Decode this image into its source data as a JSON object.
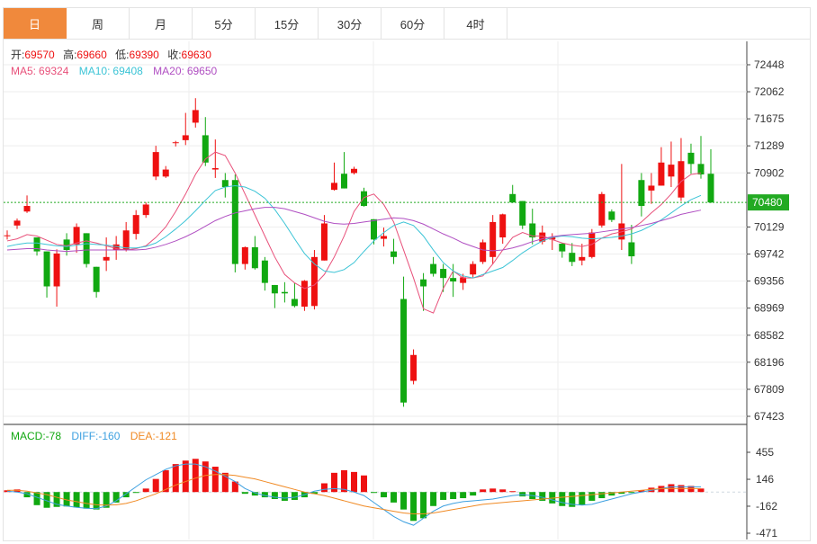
{
  "tabs": [
    {
      "label": "日",
      "active": true
    },
    {
      "label": "周",
      "active": false
    },
    {
      "label": "月",
      "active": false
    },
    {
      "label": "5分",
      "active": false
    },
    {
      "label": "15分",
      "active": false
    },
    {
      "label": "30分",
      "active": false
    },
    {
      "label": "60分",
      "active": false
    },
    {
      "label": "4时",
      "active": false
    }
  ],
  "info": {
    "open_label": "开:",
    "open": "69570",
    "high_label": "高:",
    "high": "69660",
    "low_label": "低:",
    "low": "69390",
    "close_label": "收:",
    "close": "69630"
  },
  "ma_legend": {
    "ma5_label": "MA5:",
    "ma5": "69324",
    "ma10_label": "MA10:",
    "ma10": "69408",
    "ma20_label": "MA20:",
    "ma20": "69650"
  },
  "macd_legend": {
    "macd_label": "MACD:",
    "macd": "-78",
    "diff_label": "DIFF:",
    "diff": "-160",
    "dea_label": "DEA:",
    "dea": "-121"
  },
  "colors": {
    "up": "#ee1111",
    "down": "#11a811",
    "ma5": "#e8507a",
    "ma10": "#3cc4d6",
    "ma20": "#b04fc2",
    "diff": "#3da0e0",
    "dea": "#f08a24",
    "current": "#22aa22",
    "tab_active": "#f0893c"
  },
  "chart_data": [
    {
      "type": "candlestick",
      "y_ticks": [
        "72448",
        "72062",
        "71675",
        "71289",
        "70902",
        "70129",
        "69742",
        "69356",
        "68969",
        "68582",
        "68196",
        "67809",
        "67423"
      ],
      "ylim": [
        67423,
        72448
      ],
      "current_price": "70480",
      "candles": [
        [
          70010,
          70080,
          69950,
          70010
        ],
        [
          70150,
          70250,
          70100,
          70220
        ],
        [
          70350,
          70580,
          70330,
          70430
        ],
        [
          69980,
          69980,
          69720,
          69780
        ],
        [
          69780,
          69780,
          69120,
          69280
        ],
        [
          69280,
          69810,
          68990,
          69750
        ],
        [
          69950,
          70040,
          69720,
          69800
        ],
        [
          69880,
          70180,
          69760,
          70130
        ],
        [
          70040,
          70040,
          69550,
          69600
        ],
        [
          69560,
          69560,
          69120,
          69200
        ],
        [
          69650,
          69980,
          69500,
          69700
        ],
        [
          69800,
          70000,
          69660,
          69880
        ],
        [
          69800,
          70200,
          69780,
          70080
        ],
        [
          70030,
          70370,
          69950,
          70300
        ],
        [
          70300,
          70480,
          70260,
          70450
        ],
        [
          70850,
          71290,
          70800,
          71200
        ],
        [
          70850,
          71000,
          70830,
          70950
        ],
        [
          71340,
          71360,
          71280,
          71340
        ],
        [
          71370,
          71760,
          71300,
          71440
        ],
        [
          71620,
          71970,
          71550,
          71800
        ],
        [
          71440,
          71700,
          71000,
          71050
        ],
        [
          70950,
          71380,
          70830,
          70970
        ],
        [
          70800,
          70900,
          70550,
          70700
        ],
        [
          70800,
          70880,
          69480,
          69600
        ],
        [
          69600,
          69850,
          69520,
          69840
        ],
        [
          69840,
          70000,
          69520,
          69540
        ],
        [
          69650,
          69700,
          69220,
          69330
        ],
        [
          69300,
          69300,
          68970,
          69180
        ],
        [
          69200,
          69340,
          69050,
          69180
        ],
        [
          69100,
          69330,
          68980,
          69000
        ],
        [
          68990,
          69370,
          68930,
          69360
        ],
        [
          69000,
          69800,
          68950,
          69700
        ],
        [
          69650,
          70300,
          69650,
          70180
        ],
        [
          70660,
          71050,
          70650,
          70760
        ],
        [
          70890,
          71200,
          70680,
          70680
        ],
        [
          70900,
          70990,
          70880,
          70960
        ],
        [
          70640,
          70690,
          70420,
          70430
        ],
        [
          70240,
          70240,
          69880,
          69950
        ],
        [
          69960,
          70120,
          69850,
          70000
        ],
        [
          69780,
          69960,
          69600,
          69700
        ],
        [
          69100,
          69420,
          67560,
          67620
        ],
        [
          67930,
          68380,
          67880,
          68300
        ],
        [
          69380,
          69470,
          68930,
          69280
        ],
        [
          69600,
          69700,
          69420,
          69460
        ],
        [
          69530,
          69600,
          69200,
          69400
        ],
        [
          69400,
          69600,
          69130,
          69350
        ],
        [
          69330,
          69460,
          69230,
          69410
        ],
        [
          69450,
          69640,
          69410,
          69600
        ],
        [
          69630,
          69950,
          69600,
          69910
        ],
        [
          69700,
          70300,
          69600,
          70200
        ],
        [
          69980,
          70320,
          69890,
          70310
        ],
        [
          70600,
          70730,
          70470,
          70480
        ],
        [
          70500,
          70500,
          70100,
          70150
        ],
        [
          70180,
          70390,
          69880,
          69980
        ],
        [
          69920,
          70150,
          69880,
          70050
        ],
        [
          69950,
          70040,
          69800,
          69980
        ],
        [
          69890,
          69900,
          69690,
          69780
        ],
        [
          69760,
          69900,
          69570,
          69630
        ],
        [
          69650,
          69890,
          69580,
          69700
        ],
        [
          69700,
          70100,
          69680,
          70050
        ],
        [
          70150,
          70630,
          70120,
          70600
        ],
        [
          70350,
          70380,
          70200,
          70230
        ],
        [
          69950,
          71030,
          69800,
          70180
        ],
        [
          69910,
          70160,
          69600,
          69710
        ],
        [
          70800,
          70900,
          70280,
          70430
        ],
        [
          70650,
          70900,
          70460,
          70720
        ],
        [
          70720,
          71270,
          70720,
          71050
        ],
        [
          70850,
          71350,
          70700,
          71020
        ],
        [
          70550,
          71400,
          70500,
          71070
        ],
        [
          71190,
          71320,
          70890,
          71030
        ],
        [
          71030,
          71430,
          70820,
          70880
        ],
        [
          70890,
          71240,
          70470,
          70480
        ]
      ],
      "ma5": [
        69930,
        69960,
        70020,
        70000,
        69940,
        69880,
        69860,
        69900,
        69930,
        69900,
        69860,
        69820,
        69800,
        69820,
        69860,
        69980,
        70130,
        70350,
        70600,
        70880,
        71100,
        71200,
        71150,
        70900,
        70600,
        70300,
        70000,
        69700,
        69450,
        69330,
        69250,
        69300,
        69450,
        69700,
        70000,
        70350,
        70550,
        70600,
        70450,
        70200,
        69800,
        69400,
        68960,
        68900,
        69250,
        69500,
        69400,
        69400,
        69430,
        69600,
        69800,
        69980,
        70050,
        70000,
        70000,
        69950,
        69900,
        69870,
        69850,
        69880,
        69970,
        70030,
        70060,
        70100,
        70200,
        70330,
        70450,
        70600,
        70780,
        70880,
        70900
      ],
      "ma10": [
        69850,
        69880,
        69900,
        69900,
        69880,
        69860,
        69850,
        69870,
        69890,
        69880,
        69870,
        69850,
        69830,
        69830,
        69850,
        69900,
        69990,
        70100,
        70220,
        70360,
        70510,
        70650,
        70700,
        70720,
        70700,
        70640,
        70540,
        70380,
        70180,
        69960,
        69750,
        69600,
        69500,
        69480,
        69520,
        69620,
        69780,
        69930,
        70050,
        70150,
        70200,
        70150,
        70000,
        69800,
        69620,
        69500,
        69430,
        69400,
        69450,
        69500,
        69550,
        69650,
        69760,
        69850,
        69930,
        69980,
        70000,
        69990,
        69970,
        69960,
        69970,
        69980,
        70000,
        70030,
        70080,
        70150,
        70230,
        70330,
        70430,
        70520,
        70580
      ],
      "ma20": [
        69800,
        69810,
        69820,
        69820,
        69800,
        69790,
        69780,
        69790,
        69800,
        69800,
        69800,
        69800,
        69800,
        69800,
        69810,
        69840,
        69880,
        69930,
        69990,
        70060,
        70140,
        70220,
        70280,
        70330,
        70360,
        70390,
        70410,
        70410,
        70390,
        70350,
        70310,
        70260,
        70210,
        70180,
        70170,
        70180,
        70200,
        70220,
        70240,
        70260,
        70250,
        70220,
        70170,
        70100,
        70030,
        69970,
        69900,
        69850,
        69800,
        69790,
        69800,
        69830,
        69870,
        69920,
        69960,
        69990,
        70010,
        70020,
        70030,
        70040,
        70060,
        70080,
        70100,
        70120,
        70150,
        70180,
        70220,
        70260,
        70310,
        70340,
        70370
      ]
    },
    {
      "type": "macd",
      "y_ticks": [
        "455",
        "146",
        "-162",
        "-471"
      ],
      "ylim": [
        -471,
        455
      ],
      "zero": 0,
      "macd": [
        20,
        30,
        -60,
        -150,
        -180,
        -170,
        -165,
        -175,
        -190,
        -200,
        -180,
        -120,
        -60,
        -10,
        40,
        150,
        250,
        320,
        360,
        380,
        350,
        290,
        220,
        120,
        -20,
        -40,
        -60,
        -80,
        -100,
        -90,
        -60,
        -20,
        100,
        220,
        250,
        230,
        190,
        -10,
        -60,
        -120,
        -200,
        -330,
        -300,
        -160,
        -90,
        -80,
        -70,
        -40,
        30,
        40,
        30,
        10,
        -50,
        -80,
        -100,
        -130,
        -160,
        -170,
        -150,
        -100,
        -70,
        -40,
        -20,
        -10,
        20,
        50,
        70,
        90,
        80,
        70,
        40
      ],
      "diff": [
        10,
        0,
        -20,
        -60,
        -100,
        -140,
        -160,
        -175,
        -185,
        -190,
        -160,
        -100,
        -20,
        60,
        140,
        200,
        260,
        300,
        320,
        320,
        290,
        240,
        180,
        120,
        40,
        -10,
        -40,
        -60,
        -70,
        -60,
        -30,
        10,
        30,
        40,
        30,
        0,
        -40,
        -120,
        -200,
        -280,
        -340,
        -380,
        -300,
        -220,
        -160,
        -130,
        -110,
        -100,
        -90,
        -80,
        -60,
        -40,
        -30,
        -40,
        -60,
        -90,
        -120,
        -140,
        -150,
        -140,
        -110,
        -80,
        -50,
        -20,
        0,
        20,
        40,
        60,
        60,
        60,
        60
      ],
      "dea": [
        20,
        20,
        10,
        -10,
        -30,
        -60,
        -90,
        -110,
        -130,
        -145,
        -150,
        -145,
        -130,
        -100,
        -60,
        -20,
        30,
        80,
        120,
        160,
        190,
        200,
        200,
        190,
        170,
        150,
        120,
        90,
        60,
        30,
        0,
        -20,
        -40,
        -70,
        -100,
        -130,
        -160,
        -180,
        -200,
        -220,
        -240,
        -250,
        -250,
        -240,
        -220,
        -200,
        -180,
        -160,
        -140,
        -130,
        -120,
        -110,
        -100,
        -90,
        -80,
        -70,
        -60,
        -50,
        -40,
        -30,
        -20,
        -10,
        0,
        10,
        20,
        30,
        40,
        40,
        40,
        40,
        40
      ]
    }
  ]
}
